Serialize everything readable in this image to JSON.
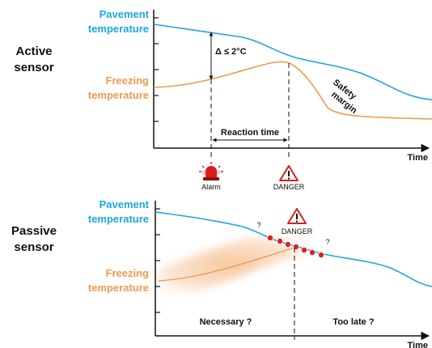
{
  "colors": {
    "pavement": "#1aa7e0",
    "freezing": "#ef9a4d",
    "danger_dot": "#e02020",
    "alarm": "#d81f1f",
    "axis": "#111111"
  },
  "active": {
    "title_line1": "Active",
    "title_line2": "sensor",
    "pavement_line1": "Pavement",
    "pavement_line2": "temperature",
    "freezing_line1": "Freezing",
    "freezing_line2": "temperature",
    "delta_label": "Δ ≤ 2°C",
    "safety_line1": "Safety",
    "safety_line2": "margin",
    "reaction_label": "Reaction time",
    "time_label": "Time",
    "alarm_label": "Alarm",
    "alarm_icon": "siren-icon",
    "danger_label": "DANGER",
    "danger_icon": "warning-triangle-icon"
  },
  "passive": {
    "title_line1": "Passive",
    "title_line2": "sensor",
    "pavement_line1": "Pavement",
    "pavement_line2": "temperature",
    "freezing_line1": "Freezing",
    "freezing_line2": "temperature",
    "danger_label": "DANGER",
    "danger_icon": "warning-triangle-icon",
    "question_left": "?",
    "question_right": "?",
    "necessary_label": "Necessary ?",
    "too_late_label": "Too late ?",
    "time_label": "Time"
  }
}
